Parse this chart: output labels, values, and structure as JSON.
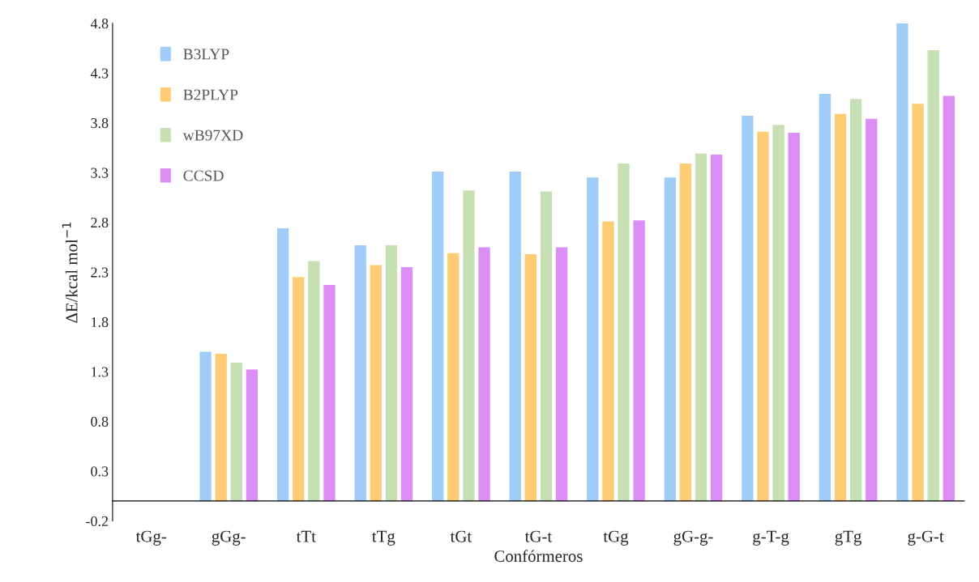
{
  "chart_data": {
    "type": "bar",
    "xlabel": "Confórmeros",
    "ylabel": "ΔE/kcal mol$^{−1}$",
    "categories": [
      "tGg-",
      "gGg-",
      "tTt",
      "tTg",
      "tGt",
      "tG-t",
      "tGg",
      "gG-g-",
      "g-T-g",
      "gTg",
      "g-G-t"
    ],
    "series": [
      {
        "name": "B3LYP",
        "color": "#9fcdf7",
        "values": [
          0,
          1.5,
          2.74,
          2.57,
          3.31,
          3.31,
          3.25,
          3.25,
          3.87,
          4.09,
          4.8
        ]
      },
      {
        "name": "B2PLYP",
        "color": "#fdcc74",
        "values": [
          0,
          1.48,
          2.25,
          2.37,
          2.49,
          2.48,
          2.81,
          3.39,
          3.71,
          3.89,
          3.99
        ]
      },
      {
        "name": "wB97XD",
        "color": "#c6e0b4",
        "values": [
          0,
          1.39,
          2.41,
          2.57,
          3.12,
          3.11,
          3.39,
          3.49,
          3.78,
          4.04,
          4.53
        ]
      },
      {
        "name": "CCSD",
        "color": "#dc8ef6",
        "values": [
          0,
          1.32,
          2.17,
          2.35,
          2.55,
          2.55,
          2.82,
          3.48,
          3.7,
          3.84,
          4.07
        ]
      }
    ],
    "ylim": [
      -0.2,
      4.8
    ],
    "yticks": [
      -0.2,
      0.3,
      0.8,
      1.3,
      1.8,
      2.3,
      2.8,
      3.3,
      3.8,
      4.3,
      4.8
    ],
    "grid": false,
    "legend": "top left"
  }
}
